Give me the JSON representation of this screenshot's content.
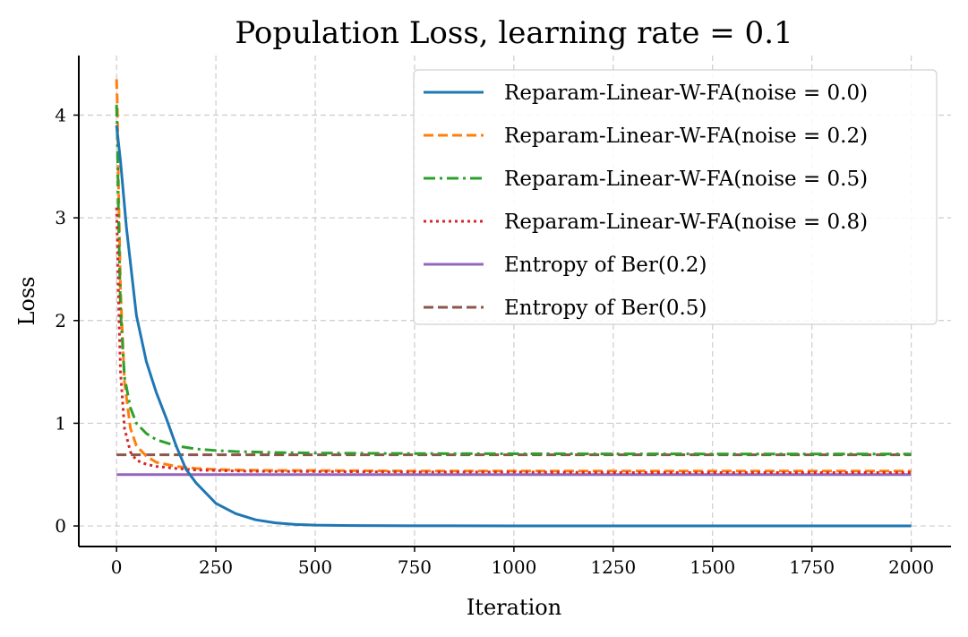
{
  "chart_data": {
    "type": "line",
    "title": "Population Loss, learning rate = 0.1",
    "xlabel": "Iteration",
    "ylabel": "Loss",
    "xlim": [
      -95,
      2100
    ],
    "ylim": [
      -0.2,
      4.58
    ],
    "xticks": [
      0,
      250,
      500,
      750,
      1000,
      1250,
      1500,
      1750,
      2000
    ],
    "yticks": [
      0,
      1,
      2,
      3,
      4
    ],
    "grid": true,
    "legend_position": "top-right",
    "series": [
      {
        "name": "Reparam-Linear-W-FA(noise = 0.0)",
        "color": "#1f77b4",
        "style": "solid",
        "x": [
          0,
          10,
          25,
          50,
          75,
          100,
          125,
          150,
          175,
          200,
          250,
          300,
          350,
          400,
          450,
          500,
          600,
          750,
          1000,
          1500,
          2000
        ],
        "y": [
          3.9,
          3.55,
          2.9,
          2.05,
          1.6,
          1.3,
          1.05,
          0.78,
          0.55,
          0.42,
          0.22,
          0.12,
          0.06,
          0.03,
          0.015,
          0.008,
          0.004,
          0.002,
          0.001,
          0.0005,
          0.0003
        ]
      },
      {
        "name": "Reparam-Linear-W-FA(noise = 0.2)",
        "color": "#ff7f0e",
        "style": "dashed",
        "x": [
          0,
          2,
          5,
          10,
          20,
          35,
          50,
          75,
          100,
          150,
          200,
          250,
          300,
          400,
          500,
          750,
          1000,
          1250,
          1500,
          1750,
          2000
        ],
        "y": [
          4.35,
          4.1,
          3.3,
          2.3,
          1.4,
          0.95,
          0.78,
          0.68,
          0.62,
          0.58,
          0.56,
          0.55,
          0.545,
          0.54,
          0.54,
          0.535,
          0.535,
          0.535,
          0.535,
          0.535,
          0.535
        ]
      },
      {
        "name": "Reparam-Linear-W-FA(noise = 0.5)",
        "color": "#2ca02c",
        "style": "dashdot",
        "x": [
          0,
          2,
          5,
          10,
          20,
          35,
          50,
          75,
          100,
          150,
          200,
          250,
          300,
          400,
          500,
          750,
          1000,
          1250,
          1500,
          1750,
          2000
        ],
        "y": [
          4.1,
          3.8,
          3.0,
          2.1,
          1.45,
          1.15,
          1.0,
          0.9,
          0.84,
          0.78,
          0.75,
          0.735,
          0.725,
          0.715,
          0.71,
          0.705,
          0.703,
          0.702,
          0.701,
          0.701,
          0.7
        ]
      },
      {
        "name": "Reparam-Linear-W-FA(noise = 0.8)",
        "color": "#d62728",
        "style": "dotted",
        "x": [
          0,
          2,
          5,
          10,
          20,
          35,
          50,
          75,
          100,
          150,
          200,
          250,
          300,
          400,
          500,
          750,
          1000,
          1250,
          1500,
          1750,
          2000
        ],
        "y": [
          3.1,
          2.8,
          2.2,
          1.5,
          0.95,
          0.72,
          0.64,
          0.6,
          0.58,
          0.56,
          0.545,
          0.54,
          0.535,
          0.53,
          0.53,
          0.525,
          0.525,
          0.52,
          0.52,
          0.52,
          0.52
        ]
      },
      {
        "name": "Entropy of Ber(0.2)",
        "color": "#9467bd",
        "style": "solid",
        "x": [
          0,
          2000
        ],
        "y": [
          0.5004,
          0.5004
        ]
      },
      {
        "name": "Entropy of Ber(0.5)",
        "color": "#8c564b",
        "style": "dashed",
        "x": [
          0,
          2000
        ],
        "y": [
          0.6931,
          0.6931
        ]
      }
    ]
  }
}
